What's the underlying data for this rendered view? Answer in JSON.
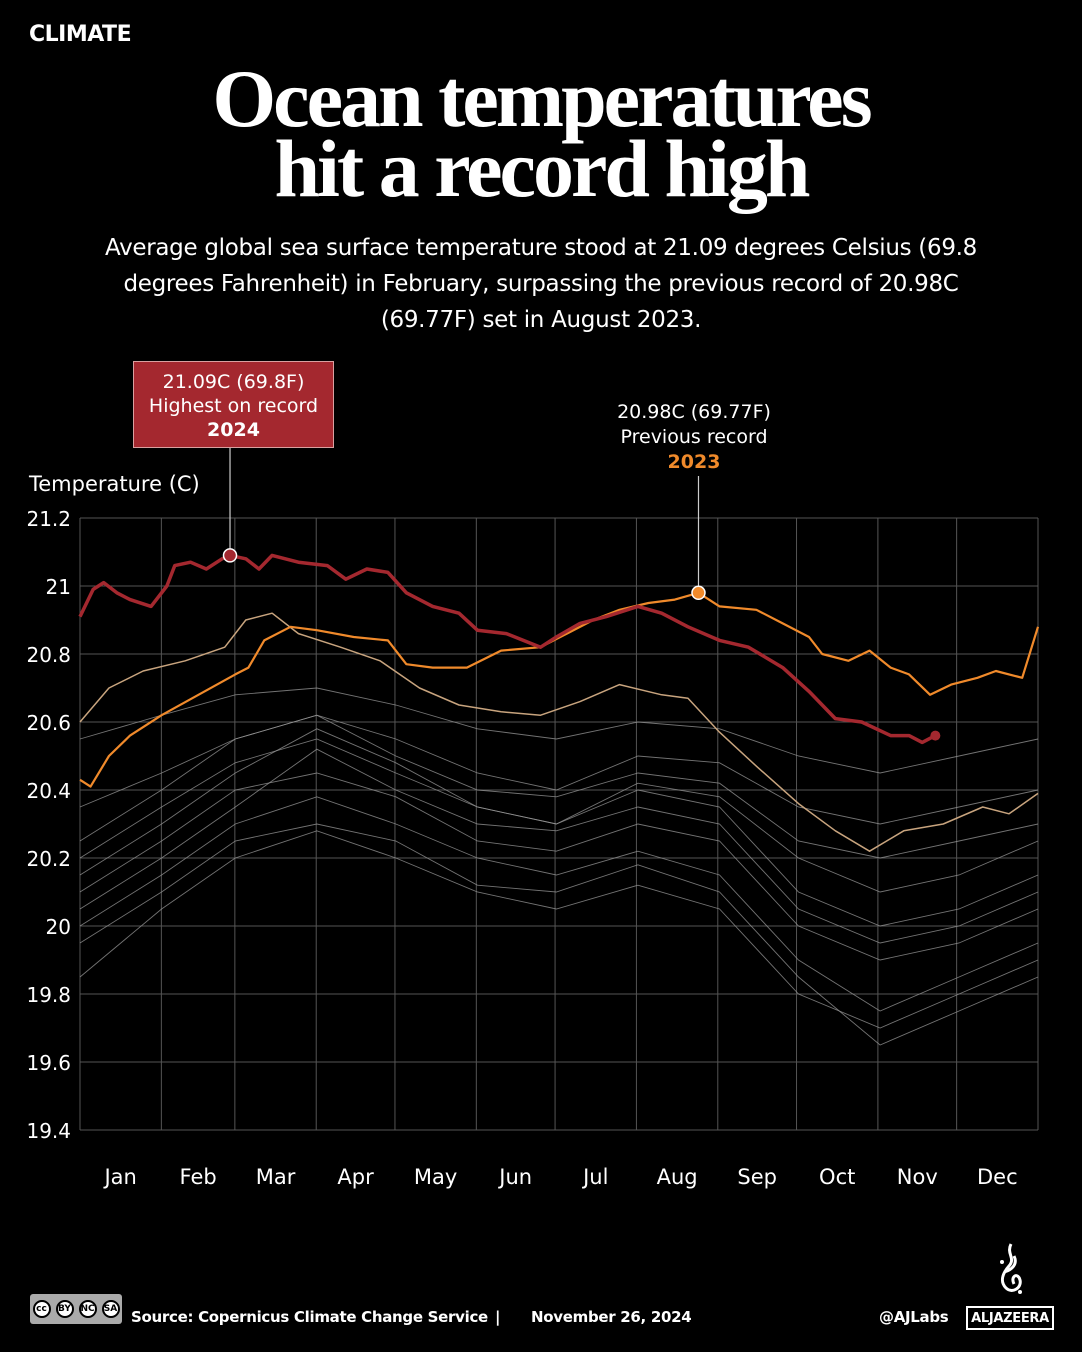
{
  "kicker": "CLIMATE",
  "title": [
    "Ocean temperatures",
    "hit a record high"
  ],
  "subtitle": "Average global sea surface temperature stood at 21.09 degrees Celsius (69.8 degrees Fahrenheit) in February, surpassing the previous record of 20.98C (69.77F) set in August 2023.",
  "annotations": {
    "record": {
      "value": "21.09C (69.8F)",
      "label": "Highest on record",
      "year": "2024",
      "color": "#a4282f"
    },
    "previous": {
      "value": "20.98C (69.77F)",
      "label": "Previous record",
      "year": "2023",
      "color": "#f08a2b"
    }
  },
  "chart_data": {
    "type": "line",
    "ylabel": "Temperature (C)",
    "ylim": [
      19.4,
      21.2
    ],
    "yticks": [
      21.2,
      21,
      20.8,
      20.6,
      20.4,
      20.2,
      20,
      19.8,
      19.6,
      19.4
    ],
    "xticks": [
      "Jan",
      "Feb",
      "Mar",
      "Apr",
      "May",
      "Jun",
      "Jul",
      "Aug",
      "Sep",
      "Oct",
      "Nov",
      "Dec"
    ],
    "grid": true,
    "highlight_series": [
      {
        "year": "2024",
        "color": "#a4282f",
        "width": 3.5,
        "points": [
          [
            "01-01",
            20.91
          ],
          [
            "01-06",
            20.99
          ],
          [
            "01-10",
            21.01
          ],
          [
            "01-15",
            20.98
          ],
          [
            "01-20",
            20.96
          ],
          [
            "01-28",
            20.94
          ],
          [
            "02-03",
            21.0
          ],
          [
            "02-06",
            21.06
          ],
          [
            "02-12",
            21.07
          ],
          [
            "02-18",
            21.05
          ],
          [
            "02-24",
            21.08
          ],
          [
            "02-27",
            21.09
          ],
          [
            "03-05",
            21.08
          ],
          [
            "03-10",
            21.05
          ],
          [
            "03-15",
            21.09
          ],
          [
            "03-25",
            21.07
          ],
          [
            "04-05",
            21.06
          ],
          [
            "04-12",
            21.02
          ],
          [
            "04-20",
            21.05
          ],
          [
            "04-28",
            21.04
          ],
          [
            "05-05",
            20.98
          ],
          [
            "05-15",
            20.94
          ],
          [
            "05-25",
            20.92
          ],
          [
            "06-01",
            20.87
          ],
          [
            "06-12",
            20.86
          ],
          [
            "06-25",
            20.82
          ],
          [
            "07-01",
            20.85
          ],
          [
            "07-10",
            20.89
          ],
          [
            "07-20",
            20.91
          ],
          [
            "08-01",
            20.94
          ],
          [
            "08-10",
            20.92
          ],
          [
            "08-20",
            20.88
          ],
          [
            "09-01",
            20.84
          ],
          [
            "09-12",
            20.82
          ],
          [
            "09-25",
            20.76
          ],
          [
            "10-05",
            20.69
          ],
          [
            "10-15",
            20.61
          ],
          [
            "10-25",
            20.6
          ],
          [
            "11-05",
            20.56
          ],
          [
            "11-12",
            20.56
          ],
          [
            "11-17",
            20.54
          ],
          [
            "11-22",
            20.56
          ]
        ]
      },
      {
        "year": "2023",
        "color": "#f08a2b",
        "width": 2.2,
        "points": [
          [
            "01-01",
            20.43
          ],
          [
            "01-05",
            20.41
          ],
          [
            "01-12",
            20.5
          ],
          [
            "01-20",
            20.56
          ],
          [
            "02-01",
            20.62
          ],
          [
            "02-15",
            20.68
          ],
          [
            "03-01",
            20.74
          ],
          [
            "03-06",
            20.76
          ],
          [
            "03-12",
            20.84
          ],
          [
            "03-22",
            20.88
          ],
          [
            "04-01",
            20.87
          ],
          [
            "04-15",
            20.85
          ],
          [
            "04-28",
            20.84
          ],
          [
            "05-05",
            20.77
          ],
          [
            "05-15",
            20.76
          ],
          [
            "05-28",
            20.76
          ],
          [
            "06-10",
            20.81
          ],
          [
            "06-25",
            20.82
          ],
          [
            "07-05",
            20.86
          ],
          [
            "07-15",
            20.9
          ],
          [
            "07-25",
            20.93
          ],
          [
            "08-05",
            20.95
          ],
          [
            "08-15",
            20.96
          ],
          [
            "08-24",
            20.98
          ],
          [
            "09-01",
            20.94
          ],
          [
            "09-15",
            20.93
          ],
          [
            "09-25",
            20.89
          ],
          [
            "10-05",
            20.85
          ],
          [
            "10-10",
            20.8
          ],
          [
            "10-20",
            20.78
          ],
          [
            "10-28",
            20.81
          ],
          [
            "11-05",
            20.76
          ],
          [
            "11-12",
            20.74
          ],
          [
            "11-20",
            20.68
          ],
          [
            "11-28",
            20.71
          ],
          [
            "12-08",
            20.73
          ],
          [
            "12-15",
            20.75
          ],
          [
            "12-25",
            20.73
          ],
          [
            "12-31",
            20.88
          ]
        ]
      },
      {
        "year": "",
        "color": "#c8a47e",
        "width": 1.5,
        "points": [
          [
            "01-01",
            20.6
          ],
          [
            "01-12",
            20.7
          ],
          [
            "01-25",
            20.75
          ],
          [
            "02-10",
            20.78
          ],
          [
            "02-25",
            20.82
          ],
          [
            "03-05",
            20.9
          ],
          [
            "03-15",
            20.92
          ],
          [
            "03-25",
            20.86
          ],
          [
            "04-10",
            20.82
          ],
          [
            "04-25",
            20.78
          ],
          [
            "05-10",
            20.7
          ],
          [
            "05-25",
            20.65
          ],
          [
            "06-10",
            20.63
          ],
          [
            "06-25",
            20.62
          ],
          [
            "07-10",
            20.66
          ],
          [
            "07-25",
            20.71
          ],
          [
            "08-10",
            20.68
          ],
          [
            "08-20",
            20.67
          ],
          [
            "09-01",
            20.57
          ],
          [
            "09-15",
            20.47
          ],
          [
            "10-01",
            20.36
          ],
          [
            "10-15",
            20.28
          ],
          [
            "10-28",
            20.22
          ],
          [
            "11-10",
            20.28
          ],
          [
            "11-25",
            20.3
          ],
          [
            "12-10",
            20.35
          ],
          [
            "12-20",
            20.33
          ],
          [
            "12-31",
            20.39
          ]
        ]
      }
    ],
    "background_series_color": "#9a9a9a",
    "background_series_x": [
      "01-01",
      "02-01",
      "03-01",
      "04-01",
      "05-01",
      "06-01",
      "07-01",
      "08-01",
      "09-01",
      "10-01",
      "11-01",
      "12-01",
      "12-31"
    ],
    "background_series": [
      [
        20.55,
        20.62,
        20.68,
        20.7,
        20.65,
        20.58,
        20.55,
        20.6,
        20.58,
        20.5,
        20.45,
        20.5,
        20.55
      ],
      [
        20.35,
        20.45,
        20.55,
        20.62,
        20.55,
        20.45,
        20.4,
        20.5,
        20.48,
        20.35,
        20.3,
        20.35,
        20.4
      ],
      [
        20.2,
        20.35,
        20.48,
        20.55,
        20.45,
        20.35,
        20.3,
        20.4,
        20.35,
        20.1,
        20.0,
        20.05,
        20.15
      ],
      [
        20.1,
        20.25,
        20.4,
        20.45,
        20.38,
        20.25,
        20.22,
        20.3,
        20.25,
        20.0,
        19.9,
        19.95,
        20.05
      ],
      [
        20.0,
        20.15,
        20.3,
        20.38,
        20.3,
        20.2,
        20.15,
        20.22,
        20.15,
        19.9,
        19.75,
        19.85,
        19.95
      ],
      [
        19.95,
        20.1,
        20.25,
        20.3,
        20.25,
        20.12,
        20.1,
        20.18,
        20.1,
        19.85,
        19.65,
        19.75,
        19.85
      ],
      [
        20.05,
        20.2,
        20.35,
        20.52,
        20.4,
        20.3,
        20.28,
        20.35,
        20.3,
        20.05,
        19.95,
        20.0,
        20.1
      ],
      [
        20.25,
        20.4,
        20.55,
        20.62,
        20.5,
        20.4,
        20.38,
        20.45,
        20.42,
        20.25,
        20.2,
        20.25,
        20.3
      ],
      [
        19.85,
        20.05,
        20.2,
        20.28,
        20.2,
        20.1,
        20.05,
        20.12,
        20.05,
        19.8,
        19.7,
        19.8,
        19.9
      ],
      [
        20.15,
        20.3,
        20.45,
        20.58,
        20.48,
        20.35,
        20.3,
        20.42,
        20.38,
        20.2,
        20.1,
        20.15,
        20.25
      ]
    ],
    "markers": [
      {
        "series": "2024",
        "date": "02-27",
        "value": 21.09
      },
      {
        "series": "2023",
        "date": "08-24",
        "value": 20.98
      }
    ]
  },
  "footer": {
    "license": [
      "BY",
      "NC",
      "SA"
    ],
    "source": "Source:  Copernicus Climate Change Service",
    "separator": "|",
    "date": "November 26, 2024",
    "handle": "@AJLabs",
    "brand": "ALJAZEERA"
  }
}
